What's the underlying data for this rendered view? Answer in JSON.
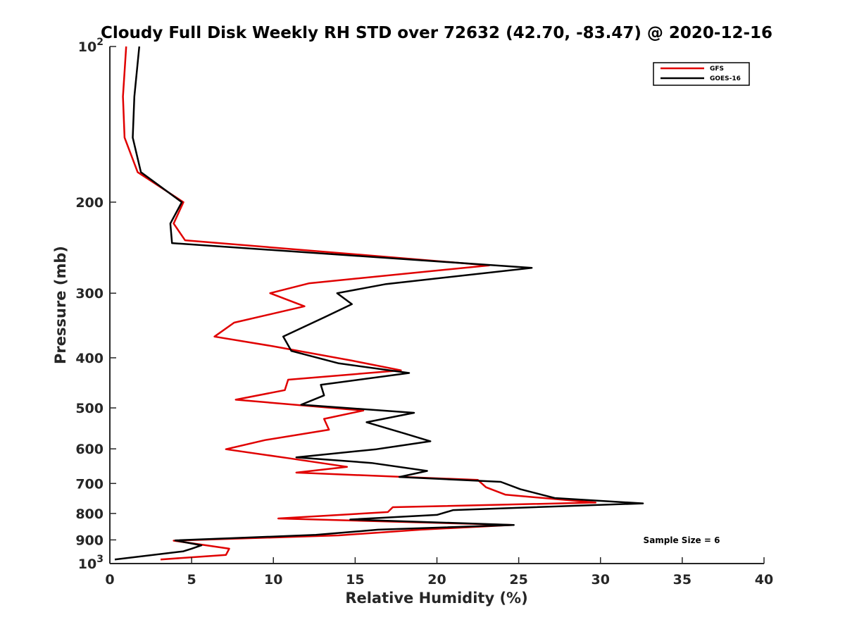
{
  "chart_data": {
    "type": "line",
    "title": "Cloudy Full Disk Weekly RH STD over 72632 (42.70, -83.47) @ 2020-12-16",
    "xlabel": "Relative Humidity (%)",
    "ylabel": "Pressure (mb)",
    "xlim": [
      0,
      40
    ],
    "ylim": [
      100,
      1000
    ],
    "y_scale": "log",
    "y_reversed": true,
    "x_ticks": [
      "0",
      "5",
      "10",
      "15",
      "20",
      "25",
      "30",
      "35",
      "40"
    ],
    "y_ticks": [
      {
        "value": 100,
        "base": "10",
        "exp": "2"
      },
      {
        "value": 200,
        "label": "200"
      },
      {
        "value": 300,
        "label": "300"
      },
      {
        "value": 400,
        "label": "400"
      },
      {
        "value": 500,
        "label": "500"
      },
      {
        "value": 600,
        "label": "600"
      },
      {
        "value": 700,
        "label": "700"
      },
      {
        "value": 800,
        "label": "800"
      },
      {
        "value": 900,
        "label": "900"
      },
      {
        "value": 1000,
        "base": "10",
        "exp": "3"
      }
    ],
    "legend_position": "top-right",
    "grid": false,
    "annotation": "Sample Size = 6",
    "series": [
      {
        "name": "GFS",
        "color": "#e00000",
        "points": [
          [
            1.0,
            100
          ],
          [
            0.8,
            125
          ],
          [
            0.9,
            150
          ],
          [
            1.7,
            175
          ],
          [
            4.5,
            200
          ],
          [
            3.9,
            220
          ],
          [
            4.6,
            237
          ],
          [
            23.2,
            265
          ],
          [
            12.2,
            287
          ],
          [
            9.8,
            300
          ],
          [
            11.9,
            318
          ],
          [
            7.6,
            342
          ],
          [
            6.4,
            364
          ],
          [
            10.0,
            380
          ],
          [
            14.8,
            405
          ],
          [
            17.8,
            423
          ],
          [
            10.9,
            441
          ],
          [
            10.7,
            462
          ],
          [
            7.7,
            482
          ],
          [
            15.5,
            506
          ],
          [
            13.1,
            525
          ],
          [
            13.4,
            551
          ],
          [
            9.5,
            577
          ],
          [
            7.1,
            601
          ],
          [
            11.0,
            626
          ],
          [
            14.5,
            650
          ],
          [
            11.4,
            667
          ],
          [
            22.5,
            689
          ],
          [
            23.0,
            712
          ],
          [
            24.2,
            736
          ],
          [
            29.7,
            762
          ],
          [
            17.3,
            778
          ],
          [
            17.0,
            795
          ],
          [
            10.3,
            818
          ],
          [
            24.6,
            842
          ],
          [
            19.0,
            860
          ],
          [
            14.0,
            882
          ],
          [
            3.9,
            903
          ],
          [
            5.9,
            922
          ],
          [
            7.3,
            936
          ],
          [
            7.1,
            962
          ],
          [
            3.1,
            982
          ]
        ]
      },
      {
        "name": "GOES-16",
        "color": "#000000",
        "points": [
          [
            1.8,
            100
          ],
          [
            1.5,
            125
          ],
          [
            1.4,
            150
          ],
          [
            1.9,
            175
          ],
          [
            4.4,
            200
          ],
          [
            3.7,
            220
          ],
          [
            3.8,
            240
          ],
          [
            25.8,
            268
          ],
          [
            16.9,
            288
          ],
          [
            13.9,
            300
          ],
          [
            14.8,
            315
          ],
          [
            13.2,
            333
          ],
          [
            10.6,
            364
          ],
          [
            11.1,
            388
          ],
          [
            14.0,
            410
          ],
          [
            18.3,
            428
          ],
          [
            12.9,
            451
          ],
          [
            13.1,
            473
          ],
          [
            11.7,
            493
          ],
          [
            18.6,
            511
          ],
          [
            15.7,
            533
          ],
          [
            18.0,
            560
          ],
          [
            19.6,
            580
          ],
          [
            16.3,
            601
          ],
          [
            11.4,
            623
          ],
          [
            16.0,
            639
          ],
          [
            19.4,
            662
          ],
          [
            17.7,
            680
          ],
          [
            23.9,
            695
          ],
          [
            25.1,
            718
          ],
          [
            27.2,
            747
          ],
          [
            32.6,
            765
          ],
          [
            21.0,
            788
          ],
          [
            20.0,
            805
          ],
          [
            14.7,
            822
          ],
          [
            24.7,
            842
          ],
          [
            16.4,
            860
          ],
          [
            12.6,
            880
          ],
          [
            4.0,
            902
          ],
          [
            5.6,
            922
          ],
          [
            5.0,
            936
          ],
          [
            4.5,
            947
          ],
          [
            0.3,
            982
          ]
        ]
      }
    ]
  }
}
